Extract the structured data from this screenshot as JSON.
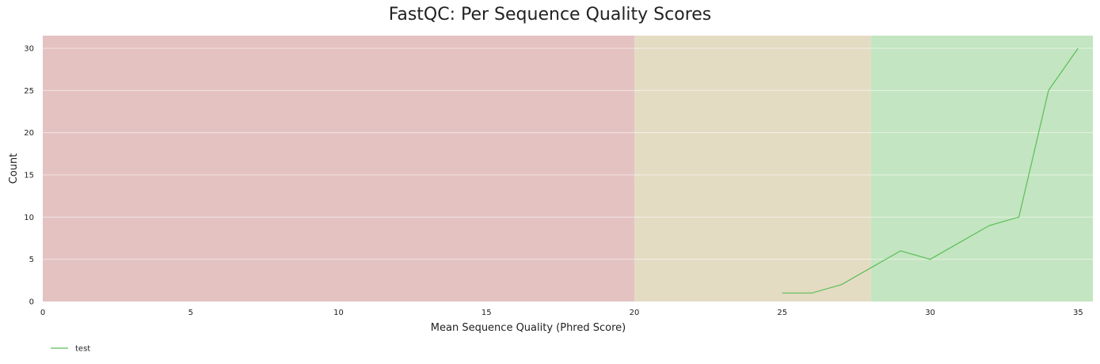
{
  "chart_data": {
    "type": "line",
    "title": "FastQC: Per Sequence Quality Scores",
    "xlabel": "Mean Sequence Quality (Phred Score)",
    "ylabel": "Count",
    "xlim": [
      0,
      35.5
    ],
    "ylim": [
      0,
      31.5
    ],
    "xticks": [
      0,
      5,
      10,
      15,
      20,
      25,
      30,
      35
    ],
    "yticks": [
      0,
      5,
      10,
      15,
      20,
      25,
      30
    ],
    "grid": true,
    "legend_position": "bottom-left",
    "bands": [
      {
        "from": 0,
        "to": 20,
        "color": "#e4c2c2"
      },
      {
        "from": 20,
        "to": 28,
        "color": "#e4dbc3"
      },
      {
        "from": 28,
        "to": 35.5,
        "color": "#c3e5c1"
      }
    ],
    "series": [
      {
        "name": "test",
        "color": "#5cbf58",
        "x": [
          25,
          26,
          27,
          28,
          29,
          30,
          31,
          32,
          33,
          34,
          35
        ],
        "y": [
          1,
          1,
          2,
          4,
          6,
          5,
          7,
          9,
          10,
          25,
          30
        ]
      }
    ]
  }
}
